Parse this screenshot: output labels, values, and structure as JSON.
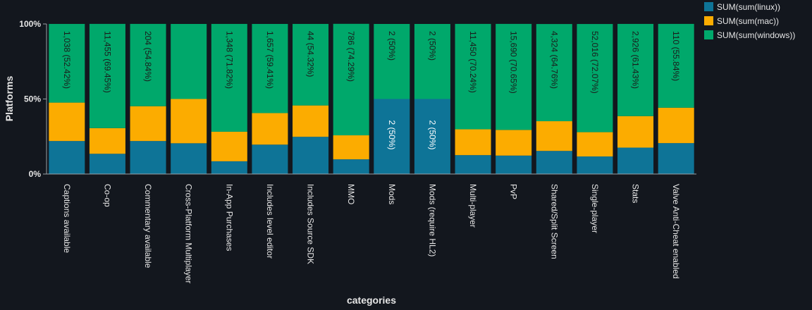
{
  "chart_data": {
    "type": "bar",
    "stacked": "percent",
    "categories": [
      "Captions available",
      "Co-op",
      "Commentary available",
      "Cross-Platform Multiplayer",
      "In-App Purchases",
      "Includes level editor",
      "Includes Source SDK",
      "MMO",
      "Mods",
      "Mods (require HL2)",
      "Multi-player",
      "PvP",
      "Shared/Split Screen",
      "Single-player",
      "Stats",
      "Valve Anti-Cheat enabled"
    ],
    "series": [
      {
        "name": "SUM(sum(linux))",
        "color": "#0e7497",
        "values": [
          22.0,
          13.5,
          22.0,
          20.5,
          8.5,
          19.6,
          24.8,
          9.8,
          50,
          50,
          12.6,
          12.3,
          15.4,
          11.7,
          17.6,
          20.6
        ]
      },
      {
        "name": "SUM(sum(mac))",
        "color": "#fcac00",
        "values": [
          25.6,
          17.1,
          23.2,
          29.5,
          19.7,
          21.0,
          20.9,
          16.0,
          0,
          0,
          17.2,
          17.1,
          19.8,
          16.2,
          21.0,
          23.6
        ]
      },
      {
        "name": "SUM(sum(windows))",
        "color": "#00a86b",
        "values": [
          52.42,
          69.45,
          54.84,
          50.0,
          71.82,
          59.41,
          54.32,
          74.29,
          50,
          50,
          70.24,
          70.65,
          64.76,
          72.07,
          61.43,
          55.84
        ]
      }
    ],
    "data_labels": {
      "linux": [
        "",
        "",
        "",
        "",
        "",
        "",
        "",
        "",
        "2 (50%)",
        "2 (50%)",
        "",
        "",
        "",
        "",
        "",
        ""
      ],
      "windows": [
        "1,038 (52.42%)",
        "11,455 (69.45%)",
        "204 (54.84%)",
        "",
        "1,348 (71.82%)",
        "1,657 (59.41%)",
        "44 (54.32%)",
        "786 (74.29%)",
        "2 (50%)",
        "2 (50%)",
        "11,450 (70.24%)",
        "15,690 (70.65%)",
        "4,324 (64.76%)",
        "52,016 (72.07%)",
        "2,926 (61.43%)",
        "110 (55.84%)"
      ]
    },
    "yticks": [
      "0%",
      "50%",
      "100%"
    ],
    "ylim": [
      0,
      100
    ],
    "xlabel": "categories",
    "ylabel": "Platforms",
    "legend_position": "top-right",
    "grid": false
  }
}
